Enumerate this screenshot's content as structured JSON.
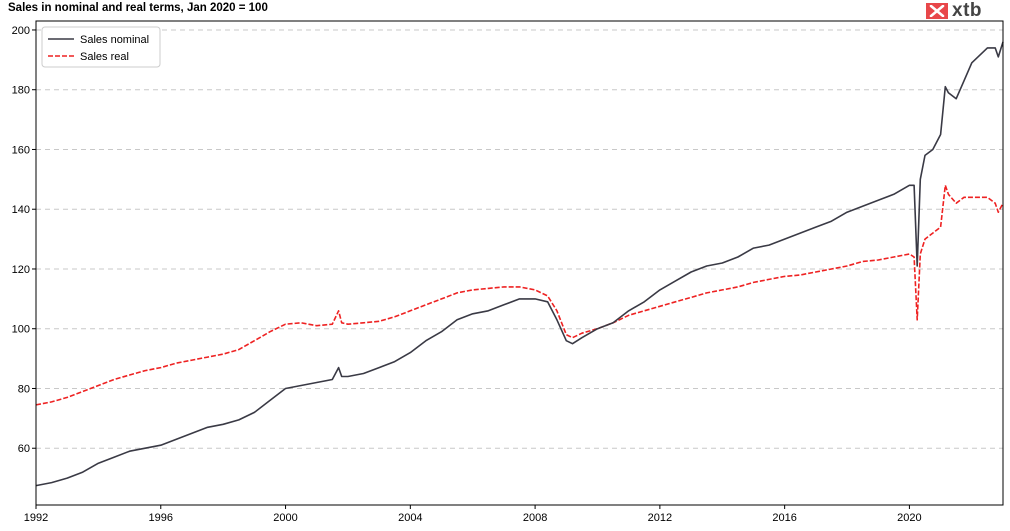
{
  "brand": {
    "logo_text": "xtb",
    "logo_icon": "xtb-x-icon",
    "accent": "#e8474a"
  },
  "chart_data": {
    "type": "line",
    "title": "Sales in nominal and real terms, Jan 2020 = 100",
    "xlabel": "",
    "ylabel": "",
    "xlim": [
      1992,
      2023.0
    ],
    "ylim": [
      41,
      203
    ],
    "xticks": [
      1992,
      1996,
      2000,
      2004,
      2008,
      2012,
      2016,
      2020
    ],
    "yticks": [
      60,
      80,
      100,
      120,
      140,
      160,
      180,
      200
    ],
    "grid": "horizontal dashed",
    "legend": "top-left",
    "series": [
      {
        "name": "Sales nominal",
        "color": "#3a3a45",
        "style": "solid",
        "x": [
          1992.0,
          1992.5,
          1993.0,
          1993.5,
          1994.0,
          1994.5,
          1995.0,
          1995.5,
          1996.0,
          1996.5,
          1997.0,
          1997.5,
          1998.0,
          1998.5,
          1999.0,
          1999.5,
          2000.0,
          2000.5,
          2001.0,
          2001.5,
          2001.7,
          2001.8,
          2002.0,
          2002.5,
          2003.0,
          2003.5,
          2004.0,
          2004.5,
          2005.0,
          2005.5,
          2006.0,
          2006.5,
          2007.0,
          2007.5,
          2008.0,
          2008.4,
          2008.7,
          2009.0,
          2009.2,
          2009.5,
          2010.0,
          2010.5,
          2011.0,
          2011.5,
          2012.0,
          2012.5,
          2013.0,
          2013.5,
          2014.0,
          2014.5,
          2015.0,
          2015.5,
          2016.0,
          2016.5,
          2017.0,
          2017.5,
          2018.0,
          2018.5,
          2019.0,
          2019.5,
          2020.0,
          2020.15,
          2020.25,
          2020.35,
          2020.5,
          2020.75,
          2021.0,
          2021.15,
          2021.25,
          2021.5,
          2021.75,
          2022.0,
          2022.5,
          2022.75,
          2022.85,
          2023.0
        ],
        "values": [
          47.5,
          48.5,
          50,
          52,
          55,
          57,
          59,
          60,
          61,
          63,
          65,
          67,
          68,
          69.5,
          72,
          76,
          80,
          81,
          82,
          83,
          87,
          84,
          84,
          85,
          87,
          89,
          92,
          96,
          99,
          103,
          105,
          106,
          108,
          110,
          110,
          109,
          103,
          96,
          95,
          97,
          100,
          102,
          106,
          109,
          113,
          116,
          119,
          121,
          122,
          124,
          127,
          128,
          130,
          132,
          134,
          136,
          139,
          141,
          143,
          145,
          148,
          148,
          121,
          150,
          158,
          160,
          165,
          181,
          179,
          177,
          183,
          189,
          194,
          194,
          191,
          196
        ]
      },
      {
        "name": "Sales real",
        "color": "#ee2222",
        "style": "dashed",
        "x": [
          1992.0,
          1992.5,
          1993.0,
          1993.5,
          1994.0,
          1994.5,
          1995.0,
          1995.5,
          1996.0,
          1996.5,
          1997.0,
          1997.5,
          1998.0,
          1998.5,
          1999.0,
          1999.5,
          2000.0,
          2000.5,
          2001.0,
          2001.5,
          2001.7,
          2001.8,
          2002.0,
          2002.5,
          2003.0,
          2003.5,
          2004.0,
          2004.5,
          2005.0,
          2005.5,
          2006.0,
          2006.5,
          2007.0,
          2007.5,
          2008.0,
          2008.4,
          2008.7,
          2009.0,
          2009.2,
          2009.5,
          2010.0,
          2010.5,
          2011.0,
          2011.5,
          2012.0,
          2012.5,
          2013.0,
          2013.5,
          2014.0,
          2014.5,
          2015.0,
          2015.5,
          2016.0,
          2016.5,
          2017.0,
          2017.5,
          2018.0,
          2018.5,
          2019.0,
          2019.5,
          2020.0,
          2020.15,
          2020.25,
          2020.35,
          2020.5,
          2020.75,
          2021.0,
          2021.15,
          2021.25,
          2021.5,
          2021.75,
          2022.0,
          2022.5,
          2022.75,
          2022.85,
          2023.0
        ],
        "values": [
          74.5,
          75.5,
          77,
          79,
          81,
          83,
          84.5,
          86,
          87,
          88.5,
          89.5,
          90.5,
          91.5,
          93,
          96,
          99,
          101.5,
          102,
          101,
          101.5,
          106,
          102,
          101.5,
          102,
          102.5,
          104,
          106,
          108,
          110,
          112,
          113,
          113.5,
          114,
          114,
          113,
          111,
          106,
          98,
          97,
          98.5,
          100,
          102,
          104.5,
          106,
          107.5,
          109,
          110.5,
          112,
          113,
          114,
          115.5,
          116.5,
          117.5,
          118,
          119,
          120,
          121,
          122.5,
          123,
          124,
          125,
          124,
          103,
          125,
          130,
          132,
          134,
          148,
          145,
          142,
          144,
          144,
          144,
          142,
          139,
          142
        ]
      }
    ]
  }
}
